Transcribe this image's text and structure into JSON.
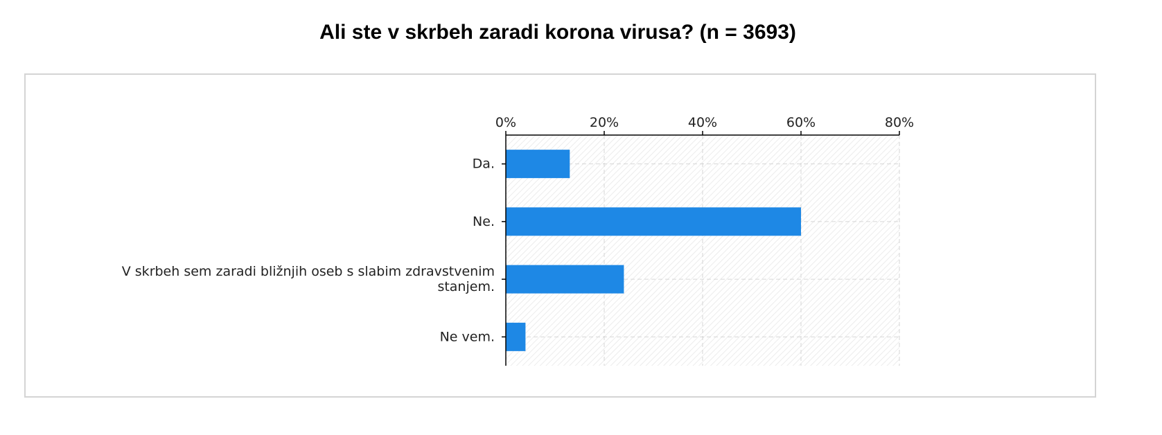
{
  "title": "Ali ste v skrbeh zaradi korona virusa? (n = 3693)",
  "chart_data": {
    "type": "bar",
    "orientation": "horizontal",
    "title": "Ali ste v skrbeh zaradi korona virusa? (n = 3693)",
    "xlabel": "",
    "ylabel": "",
    "categories": [
      [
        "Da."
      ],
      [
        "Ne."
      ],
      [
        "V skrbeh sem zaradi bližnjih oseb s slabim zdravstvenim",
        "stanjem."
      ],
      [
        "Ne vem."
      ]
    ],
    "values": [
      13,
      60,
      24,
      4
    ],
    "unit": "%",
    "xlim": [
      0,
      80
    ],
    "ticks": [
      0,
      20,
      40,
      60,
      80
    ],
    "tick_labels": [
      "0%",
      "20%",
      "40%",
      "60%",
      "80%"
    ],
    "grid": true,
    "bar_color": "#1e88e5",
    "legend": "none"
  }
}
